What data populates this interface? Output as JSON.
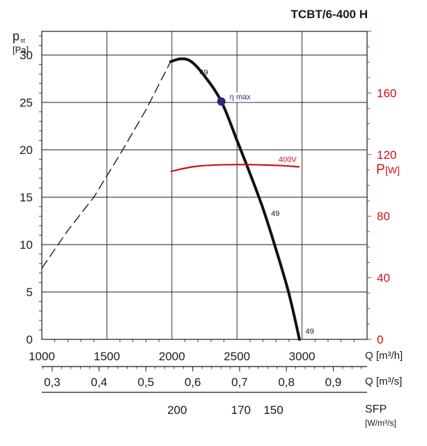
{
  "chart_data": {
    "type": "line",
    "title": "TCBT/6-400 H",
    "y_left": {
      "label_main": "p",
      "label_sub": "st",
      "unit": "[Pa]",
      "range": [
        0,
        32.5
      ],
      "ticks": [
        0,
        5,
        10,
        15,
        20,
        25,
        30
      ]
    },
    "y_right": {
      "label_main": "P",
      "unit": "[W]",
      "range": [
        0,
        200
      ],
      "ticks": [
        0,
        40,
        80,
        120,
        160
      ],
      "color": "#cc1111"
    },
    "x": {
      "label": "Q [m³/h]",
      "range": [
        1000,
        3500
      ],
      "ticks": [
        1000,
        1500,
        2000,
        2500,
        3000
      ]
    },
    "x_secondary": {
      "label": "Q [m³/s]",
      "ticks": [
        {
          "value": 0.3,
          "label": "0,3"
        },
        {
          "value": 0.4,
          "label": "0,4"
        },
        {
          "value": 0.5,
          "label": "0,5"
        },
        {
          "value": 0.6,
          "label": "0,6"
        },
        {
          "value": 0.7,
          "label": "0,7"
        },
        {
          "value": 0.8,
          "label": "0,8"
        },
        {
          "value": 0.9,
          "label": "0,9"
        }
      ]
    },
    "sfp_scale": {
      "label": "SFP",
      "unit": "[W/m³/s]",
      "ticks": [
        {
          "q": 2040,
          "label": "200"
        },
        {
          "q": 2530,
          "label": "170"
        },
        {
          "q": 2780,
          "label": "150"
        }
      ]
    },
    "series": [
      {
        "name": "400V",
        "axis": "right",
        "color": "#cc1111",
        "points": [
          [
            1990,
            109
          ],
          [
            2200,
            112.5
          ],
          [
            2500,
            113.5
          ],
          [
            2800,
            113
          ],
          [
            2980,
            112
          ]
        ]
      }
    ],
    "pressure_curve": {
      "axis": "left",
      "dashed_part": [
        [
          1000,
          7.5
        ],
        [
          1200,
          11.5
        ],
        [
          1400,
          15
        ],
        [
          1600,
          19.5
        ],
        [
          1800,
          24.2
        ],
        [
          1990,
          29.3
        ]
      ],
      "solid_part": [
        [
          1990,
          29.3
        ],
        [
          2070,
          29.6
        ],
        [
          2150,
          29.3
        ],
        [
          2250,
          27.8
        ],
        [
          2380,
          25.1
        ],
        [
          2500,
          21
        ],
        [
          2600,
          17.5
        ],
        [
          2700,
          13.8
        ],
        [
          2800,
          9.5
        ],
        [
          2900,
          4.8
        ],
        [
          2980,
          0
        ]
      ]
    },
    "annotations": [
      {
        "text": "η max",
        "q": 2380,
        "p": 25.1,
        "marker": true
      },
      {
        "text": "49",
        "q": 2180,
        "p": 28.2
      },
      {
        "text": "49",
        "q": 2730,
        "p": 13.3
      },
      {
        "text": "49",
        "q": 2995,
        "p": 0.9
      }
    ],
    "grid": true
  }
}
